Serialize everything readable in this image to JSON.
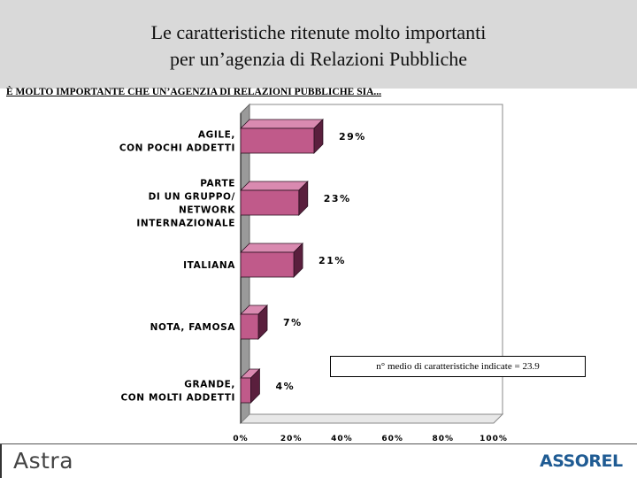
{
  "header": {
    "title_line1": "Le caratteristiche ritenute molto importanti",
    "title_line2": "per un’agenzia di Relazioni Pubbliche"
  },
  "question": "È MOLTO IMPORTANTE CHE UN’AGENZIA DI RELAZIONI PUBBLICHE SIA...",
  "note": "n° medio di caratteristiche indicate = 23.9",
  "chart_data": {
    "type": "bar",
    "orientation": "horizontal",
    "categories": [
      [
        "AGILE,",
        "CON POCHI ADDETTI"
      ],
      [
        "PARTE",
        "DI UN GRUPPO/",
        "NETWORK",
        "INTERNAZIONALE"
      ],
      [
        "ITALIANA"
      ],
      [
        "NOTA, FAMOSA"
      ],
      [
        "GRANDE,",
        "CON MOLTI ADDETTI"
      ]
    ],
    "values": [
      29,
      23,
      21,
      7,
      4
    ],
    "value_labels": [
      "29%",
      "23%",
      "21%",
      "7%",
      "4%"
    ],
    "xlim": [
      0,
      100
    ],
    "xticks": [
      0,
      20,
      40,
      60,
      80,
      100
    ],
    "xtick_labels": [
      "0%",
      "20%",
      "40%",
      "60%",
      "80%",
      "100%"
    ],
    "bar_color": "#c05a8a",
    "bar_top_color": "#d98ab0",
    "bar_side_color": "#5a1f3d",
    "grid": false,
    "style": "3d"
  },
  "logos": {
    "left": "Astra",
    "right": "ASSOREL",
    "right_color": "#1f5b93"
  }
}
